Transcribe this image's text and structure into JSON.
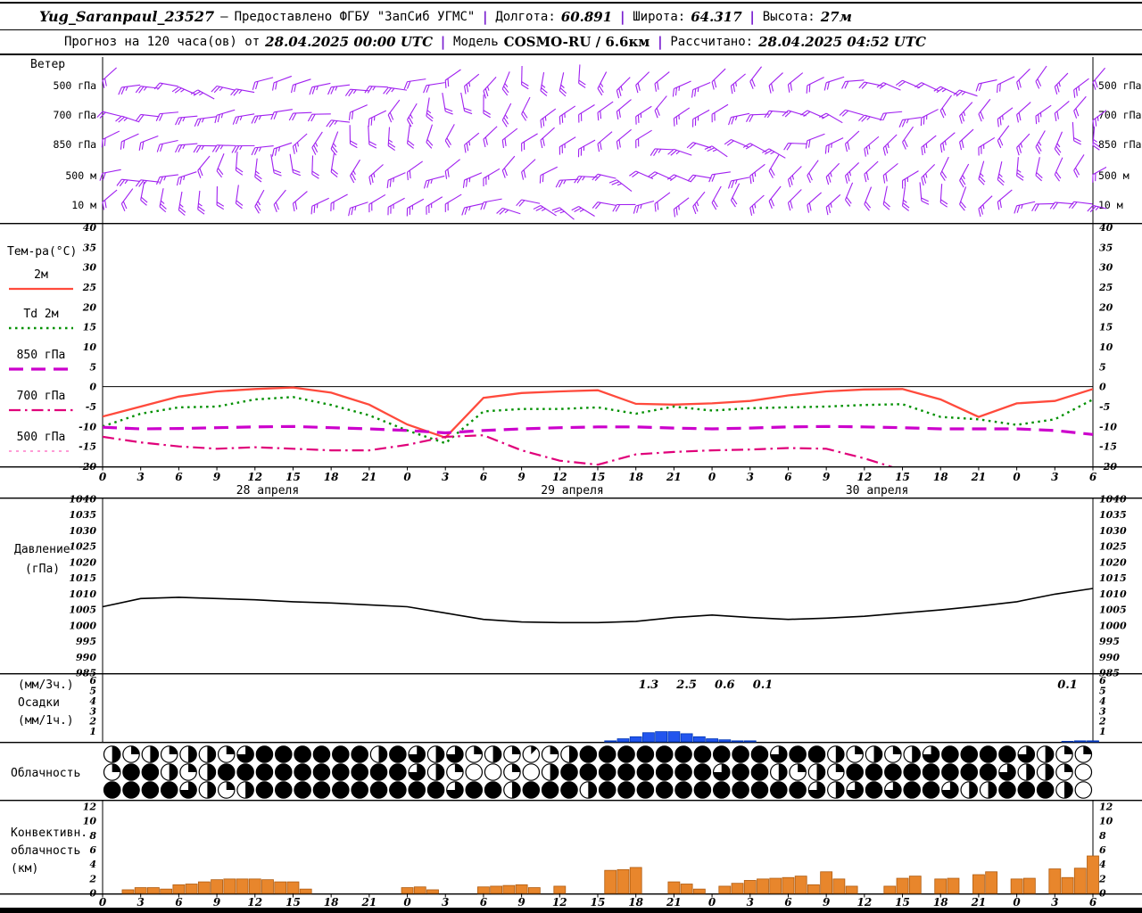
{
  "header": {
    "station": "Yug_Saranpaul_23527",
    "dash": "—",
    "provider": "Предоставлено ФГБУ \"ЗапСиб УГМС\"",
    "separator": "|",
    "lon_label": "Долгота:",
    "lon": "60.891",
    "lat_label": "Широта:",
    "lat": "64.317",
    "alt_label": "Высота:",
    "alt": "27м",
    "forecast_label": "Прогноз на 120 часа(ов) от",
    "forecast_time": "28.04.2025 00:00 UTC",
    "model_label": "Модель",
    "model": "COSMO-RU / 6.6км",
    "calc_label": "Рассчитано:",
    "calc_time": "28.04.2025 04:52 UTC"
  },
  "axes": {
    "hours_span": 78,
    "hour_step": 3,
    "hour_labels": [
      "0",
      "3",
      "6",
      "9",
      "12",
      "15",
      "18",
      "21",
      "0",
      "3",
      "6",
      "9",
      "12",
      "15",
      "18",
      "21",
      "0",
      "3",
      "6",
      "9",
      "12",
      "15",
      "18",
      "21",
      "0",
      "3",
      "6"
    ],
    "dates": [
      {
        "text": "28 апреля",
        "hour": 13
      },
      {
        "text": "29 апреля",
        "hour": 37
      },
      {
        "text": "30 апреля",
        "hour": 61
      }
    ]
  },
  "panels": {
    "wind_title": "Ветер",
    "temp_title": "Тем-ра(°C)",
    "pressure_title": [
      "Давление",
      "(гПа)"
    ],
    "precip_title": [
      "(мм/3ч.)",
      "Осадки",
      "(мм/1ч.)"
    ],
    "clouds_title": "Облачность",
    "conv_title": [
      "Конвективн.",
      "облачность",
      "(км)"
    ]
  },
  "colors": {
    "barbs": "#a020f0",
    "t2m": "#ff4a3c",
    "td2m": "#009000",
    "t850": "#cc00cc",
    "t700": "#e0007a",
    "t500": "#ff7ac8",
    "pressure": "#000000",
    "precip": "#2255ee",
    "conv": "#e8862c"
  },
  "chart_data": [
    {
      "type": "wind-barbs",
      "title": "Ветер",
      "levels": [
        "500 гПа",
        "700 гПа",
        "850 гПа",
        "500 м",
        "10 м"
      ],
      "barb_interval_hours": 1.5,
      "color": "#a020f0"
    },
    {
      "type": "line",
      "title": "Температура (°C)",
      "ylim": [
        -20,
        40
      ],
      "yticks": [
        40,
        35,
        30,
        25,
        20,
        15,
        10,
        5,
        0,
        -5,
        -10,
        -15,
        -20
      ],
      "x": [
        0,
        3,
        6,
        9,
        12,
        15,
        18,
        21,
        24,
        27,
        30,
        33,
        36,
        39,
        42,
        45,
        48,
        51,
        54,
        57,
        60,
        63,
        66,
        69,
        72,
        75,
        78
      ],
      "series": [
        {
          "name": "2м",
          "key": "t2m",
          "style": "solid",
          "values": [
            -7.5,
            -5,
            -2.5,
            -1.2,
            -0.6,
            -0.2,
            -1.5,
            -4.5,
            -9.5,
            -12.8,
            -2.8,
            -1.6,
            -1.2,
            -0.9,
            -4.3,
            -4.5,
            -4.2,
            -3.6,
            -2.2,
            -1.2,
            -0.7,
            -0.6,
            -3.2,
            -7.6,
            -4.2,
            -3.6,
            -0.6
          ]
        },
        {
          "name": "Td 2м",
          "key": "td2m",
          "style": "dotted",
          "values": [
            -10,
            -6.8,
            -5.2,
            -5,
            -3.2,
            -2.6,
            -4.6,
            -7.2,
            -11,
            -14.2,
            -6.2,
            -5.6,
            -5.6,
            -5.2,
            -6.8,
            -5,
            -6,
            -5.4,
            -5.2,
            -5,
            -4.6,
            -4.4,
            -7.6,
            -8.2,
            -9.6,
            -8.2,
            -3.2
          ]
        },
        {
          "name": "850 гПа",
          "key": "t850",
          "style": "dash",
          "values": [
            -10.2,
            -10.6,
            -10.5,
            -10.3,
            -10.1,
            -10,
            -10.3,
            -10.6,
            -11,
            -11.6,
            -11,
            -10.6,
            -10.3,
            -10.1,
            -10.1,
            -10.4,
            -10.6,
            -10.4,
            -10.1,
            -10,
            -10.1,
            -10.3,
            -10.6,
            -10.6,
            -10.6,
            -11,
            -12
          ]
        },
        {
          "name": "700 гПа",
          "key": "t700",
          "style": "dashdot",
          "values": [
            -12.6,
            -14,
            -15,
            -15.6,
            -15.2,
            -15.6,
            -16,
            -16,
            -14.6,
            -12.6,
            -12.2,
            -16,
            -18.6,
            -19.6,
            -17,
            -16.4,
            -16,
            -15.8,
            -15.4,
            -15.6,
            -18,
            -21,
            -22,
            -22,
            -21.5,
            -21,
            -20.6
          ]
        },
        {
          "name": "500 гПа",
          "key": "t500",
          "style": "fine-dash",
          "values": []
        }
      ]
    },
    {
      "type": "line",
      "title": "Давление (гПа)",
      "ylim": [
        985,
        1040
      ],
      "yticks": [
        1040,
        1035,
        1030,
        1025,
        1020,
        1015,
        1010,
        1005,
        1000,
        995,
        990,
        985
      ],
      "x": [
        0,
        3,
        6,
        9,
        12,
        15,
        18,
        21,
        24,
        27,
        30,
        33,
        36,
        39,
        42,
        45,
        48,
        51,
        54,
        57,
        60,
        63,
        66,
        69,
        72,
        75,
        78
      ],
      "series": [
        {
          "name": "Давление",
          "key": "pressure",
          "style": "solid",
          "values": [
            1006,
            1008.6,
            1009,
            1008.6,
            1008.2,
            1007.6,
            1007.2,
            1006.6,
            1006,
            1004,
            1002,
            1001.2,
            1001,
            1001,
            1001.4,
            1002.6,
            1003.4,
            1002.6,
            1002,
            1002.4,
            1003,
            1004,
            1005,
            1006.2,
            1007.6,
            1010,
            1011.8
          ]
        }
      ]
    },
    {
      "type": "bar",
      "title": "Осадки (мм/1ч)",
      "ylim": [
        0,
        6.5
      ],
      "yticks": [
        6,
        5,
        4,
        3,
        2,
        1
      ],
      "bars": {
        "hours": [
          40,
          41,
          42,
          43,
          44,
          45,
          46,
          47,
          48,
          49,
          50,
          51,
          76,
          77,
          78
        ],
        "values": [
          0.1,
          0.3,
          0.5,
          0.9,
          1.0,
          1.0,
          0.8,
          0.5,
          0.3,
          0.2,
          0.1,
          0.1,
          0.05,
          0.1,
          0.1
        ]
      },
      "labels_3h": [
        {
          "hour": 43,
          "text": "1.3"
        },
        {
          "hour": 46,
          "text": "2.5"
        },
        {
          "hour": 49,
          "text": "0.6"
        },
        {
          "hour": 52,
          "text": "0.1"
        },
        {
          "hour": 76,
          "text": "0.1"
        }
      ]
    },
    {
      "type": "symbols",
      "title": "Облачность",
      "rows": [
        {
          "oktas": [
            4,
            2,
            4,
            2,
            4,
            4,
            2,
            6,
            8,
            8,
            8,
            8,
            8,
            8,
            4,
            8,
            6,
            4,
            6,
            2,
            4,
            2,
            1,
            2,
            4,
            8,
            8,
            8,
            8,
            8,
            8,
            8,
            8,
            8,
            8,
            6,
            8,
            8,
            4,
            2,
            4,
            2,
            4,
            6,
            8,
            8,
            8,
            8,
            6,
            4,
            2,
            2
          ]
        },
        {
          "oktas": [
            2,
            8,
            8,
            4,
            2,
            4,
            8,
            8,
            8,
            8,
            8,
            8,
            8,
            8,
            8,
            8,
            6,
            4,
            2,
            0,
            0,
            2,
            0,
            4,
            8,
            8,
            8,
            8,
            8,
            8,
            8,
            8,
            6,
            8,
            8,
            4,
            2,
            4,
            2,
            8,
            8,
            8,
            8,
            8,
            8,
            8,
            8,
            6,
            4,
            4,
            2,
            0
          ]
        },
        {
          "oktas": [
            8,
            8,
            8,
            8,
            6,
            4,
            2,
            4,
            8,
            8,
            8,
            8,
            8,
            8,
            8,
            8,
            8,
            8,
            6,
            8,
            8,
            4,
            8,
            8,
            8,
            4,
            8,
            8,
            8,
            8,
            8,
            8,
            8,
            8,
            8,
            8,
            8,
            6,
            4,
            6,
            8,
            6,
            8,
            8,
            6,
            4,
            4,
            8,
            8,
            8,
            4,
            0
          ]
        }
      ]
    },
    {
      "type": "bar",
      "title": "Конвективная облачность (км)",
      "ylim": [
        0,
        13
      ],
      "yticks": [
        12,
        10,
        8,
        6,
        4,
        2,
        0
      ],
      "bars": {
        "hours": [
          2,
          3,
          4,
          5,
          6,
          7,
          8,
          9,
          10,
          11,
          12,
          13,
          14,
          15,
          16,
          24,
          25,
          26,
          30,
          31,
          32,
          33,
          34,
          36,
          40,
          41,
          42,
          45,
          46,
          47,
          49,
          50,
          51,
          52,
          53,
          54,
          55,
          56,
          57,
          58,
          59,
          62,
          63,
          64,
          66,
          67,
          69,
          70,
          72,
          73,
          75,
          76,
          77,
          78
        ],
        "values": [
          0.5,
          0.8,
          0.8,
          0.6,
          1.2,
          1.3,
          1.6,
          1.9,
          2,
          2,
          2,
          1.9,
          1.6,
          1.6,
          0.6,
          0.8,
          0.9,
          0.5,
          0.9,
          1,
          1.1,
          1.2,
          0.8,
          1,
          3.2,
          3.3,
          3.6,
          1.6,
          1.3,
          0.6,
          1,
          1.4,
          1.8,
          2,
          2.1,
          2.2,
          2.4,
          1.2,
          3,
          2,
          1,
          1,
          2.1,
          2.4,
          2,
          2.1,
          2.6,
          3,
          2,
          2.1,
          3.4,
          2.2,
          3.5,
          5.2
        ]
      }
    }
  ]
}
